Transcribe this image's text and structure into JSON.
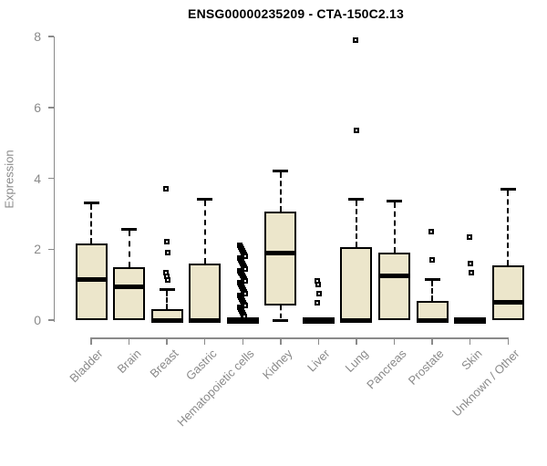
{
  "chart_data": {
    "type": "boxplot",
    "title": "ENSG00000235209 - CTA-150C2.13",
    "ylabel": "Expression",
    "xlabel": "",
    "ylim": [
      0,
      8
    ],
    "yticks": [
      0,
      2,
      4,
      6,
      8
    ],
    "grid": false,
    "legend": "none",
    "box_fill_color": "#ECE6CB",
    "box_border_color": "#000000",
    "axis_color": "#8a8a8a",
    "categories": [
      "Bladder",
      "Brain",
      "Breast",
      "Gastric",
      "Hematopoietic cells",
      "Kidney",
      "Liver",
      "Lung",
      "Pancreas",
      "Prostate",
      "Skin",
      "Unknown / Other"
    ],
    "series": [
      {
        "name": "Bladder",
        "whisker_low": 0,
        "q1": 0,
        "median": 1.15,
        "q3": 2.15,
        "whisker_high": 3.3,
        "outliers": []
      },
      {
        "name": "Brain",
        "whisker_low": 0,
        "q1": 0,
        "median": 0.95,
        "q3": 1.5,
        "whisker_high": 2.55,
        "outliers": []
      },
      {
        "name": "Breast",
        "whisker_low": 0,
        "q1": 0,
        "median": 0,
        "q3": 0.3,
        "whisker_high": 0.85,
        "outliers": [
          3.7,
          2.2,
          1.9,
          1.33,
          1.24,
          1.13
        ]
      },
      {
        "name": "Gastric",
        "whisker_low": 0,
        "q1": 0,
        "median": 0,
        "q3": 1.6,
        "whisker_high": 3.4,
        "outliers": []
      },
      {
        "name": "Hematopoietic cells",
        "whisker_low": 0,
        "q1": 0,
        "median": 0,
        "q3": 0,
        "whisker_high": 0,
        "outliers": [
          2.1,
          2.05,
          2.0,
          1.95,
          1.9,
          1.85,
          1.8,
          1.75,
          1.7,
          1.65,
          1.6,
          1.55,
          1.5,
          1.45,
          1.4,
          1.35,
          1.3,
          1.25,
          1.2,
          1.15,
          1.1,
          1.05,
          1.0,
          0.95,
          0.9,
          0.85,
          0.8,
          0.75,
          0.7,
          0.65,
          0.6,
          0.55,
          0.5,
          0.45,
          0.4,
          0.35,
          0.3,
          0.25,
          0.2,
          0.15,
          0.1
        ]
      },
      {
        "name": "Kidney",
        "whisker_low": 0,
        "q1": 0.4,
        "median": 1.9,
        "q3": 3.05,
        "whisker_high": 4.2,
        "outliers": []
      },
      {
        "name": "Liver",
        "whisker_low": 0,
        "q1": 0,
        "median": 0,
        "q3": 0,
        "whisker_high": 0,
        "outliers": [
          1.1,
          1.0,
          0.75,
          0.5
        ]
      },
      {
        "name": "Lung",
        "whisker_low": 0,
        "q1": 0,
        "median": 0,
        "q3": 2.05,
        "whisker_high": 3.4,
        "outliers": [
          7.9,
          5.35
        ]
      },
      {
        "name": "Pancreas",
        "whisker_low": 0,
        "q1": 0,
        "median": 1.25,
        "q3": 1.9,
        "whisker_high": 3.35,
        "outliers": []
      },
      {
        "name": "Prostate",
        "whisker_low": 0,
        "q1": 0,
        "median": 0,
        "q3": 0.55,
        "whisker_high": 1.15,
        "outliers": [
          2.5,
          1.7
        ]
      },
      {
        "name": "Skin",
        "whisker_low": 0,
        "q1": 0,
        "median": 0,
        "q3": 0,
        "whisker_high": 0,
        "outliers": [
          2.35,
          1.6,
          1.35
        ]
      },
      {
        "name": "Unknown / Other",
        "whisker_low": 0,
        "q1": 0,
        "median": 0.5,
        "q3": 1.55,
        "whisker_high": 3.7,
        "outliers": []
      }
    ]
  }
}
